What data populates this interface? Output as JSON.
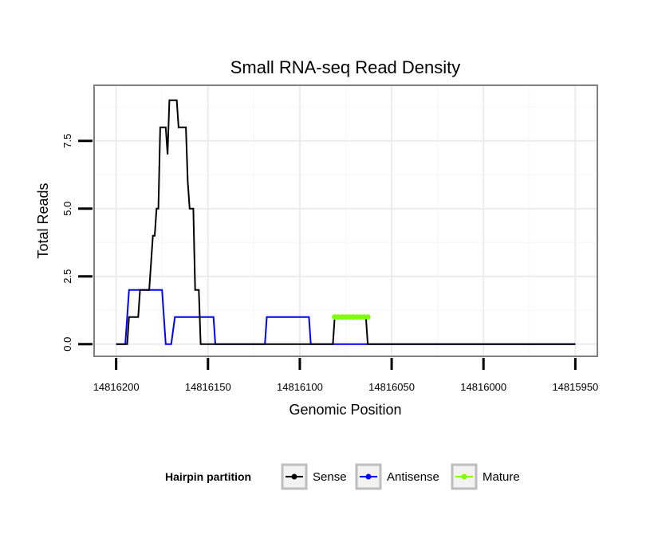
{
  "chart_data": {
    "type": "line",
    "title": "Small RNA-seq Read Density",
    "xlabel": "Genomic Position",
    "ylabel": "Total Reads",
    "xlim": [
      14816212,
      14815938
    ],
    "ylim": [
      -0.45,
      9.55
    ],
    "x_reversed": true,
    "x_ticks": [
      14816200,
      14816150,
      14816100,
      14816050,
      14816000,
      14815950
    ],
    "x_tick_labels": [
      "14816200",
      "14816150",
      "14816100",
      "14816050",
      "14816000",
      "14815950"
    ],
    "y_ticks": [
      0,
      2.5,
      5,
      7.5
    ],
    "y_tick_labels": [
      "0.0",
      "2.5",
      "5.0",
      "7.5"
    ],
    "grid": true,
    "legend": {
      "title": "Hairpin partition",
      "position": "bottom",
      "entries": [
        "Sense",
        "Antisense",
        "Mature"
      ]
    },
    "series": [
      {
        "name": "Sense",
        "color": "#000000",
        "points": [
          [
            14816200,
            0
          ],
          [
            14816194,
            0
          ],
          [
            14816193,
            1
          ],
          [
            14816188,
            1
          ],
          [
            14816187,
            2
          ],
          [
            14816182,
            2
          ],
          [
            14816181,
            3
          ],
          [
            14816180,
            4
          ],
          [
            14816179,
            4
          ],
          [
            14816178,
            5
          ],
          [
            14816177,
            5
          ],
          [
            14816176,
            8
          ],
          [
            14816173,
            8
          ],
          [
            14816172,
            7
          ],
          [
            14816171,
            9
          ],
          [
            14816167,
            9
          ],
          [
            14816166,
            8
          ],
          [
            14816162,
            8
          ],
          [
            14816161,
            6
          ],
          [
            14816160,
            5
          ],
          [
            14816158,
            5
          ],
          [
            14816157,
            2
          ],
          [
            14816155,
            2
          ],
          [
            14816154,
            0
          ],
          [
            14816082,
            0
          ],
          [
            14816081,
            1
          ],
          [
            14816064,
            1
          ],
          [
            14816063,
            0
          ],
          [
            14815950,
            0
          ]
        ]
      },
      {
        "name": "Antisense",
        "color": "#0000ff",
        "points": [
          [
            14816200,
            0
          ],
          [
            14816195,
            0
          ],
          [
            14816193,
            2
          ],
          [
            14816175,
            2
          ],
          [
            14816173,
            0
          ],
          [
            14816170,
            0
          ],
          [
            14816168,
            1
          ],
          [
            14816147,
            1
          ],
          [
            14816146,
            0
          ],
          [
            14816119,
            0
          ],
          [
            14816118,
            1
          ],
          [
            14816095,
            1
          ],
          [
            14816094,
            0
          ],
          [
            14816081,
            0
          ],
          [
            14816063,
            0
          ],
          [
            14815950,
            0
          ]
        ]
      },
      {
        "name": "Mature",
        "color": "#7fff00",
        "points": [
          [
            14816081,
            1
          ],
          [
            14816079,
            1
          ],
          [
            14816077,
            1
          ],
          [
            14816075,
            1
          ],
          [
            14816073,
            1
          ],
          [
            14816071,
            1
          ],
          [
            14816069,
            1
          ],
          [
            14816067,
            1
          ],
          [
            14816065,
            1
          ],
          [
            14816063,
            1
          ]
        ]
      }
    ]
  }
}
